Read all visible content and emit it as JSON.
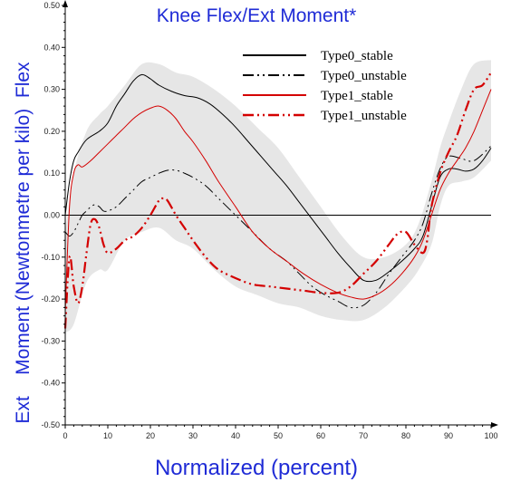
{
  "chart_data": {
    "type": "line",
    "title": "Knee Flex/Ext Moment*",
    "xlabel": "Normalized (percent)",
    "ylabel": "Ext    Moment (Newtonmetre per kilo)  Flex",
    "xlim": [
      0,
      100
    ],
    "ylim": [
      -0.5,
      0.5
    ],
    "x_ticks": [
      "0",
      "10",
      "20",
      "30",
      "40",
      "50",
      "60",
      "70",
      "80",
      "90",
      "100"
    ],
    "y_ticks": [
      "0.50",
      "0.40",
      "0.30",
      "0.20",
      "0.10",
      "0.00",
      "-0.10",
      "-0.20",
      "-0.30",
      "-0.40",
      "-0.50"
    ],
    "legend_position": "top-right",
    "grid": false,
    "zero_line": true,
    "band": {
      "color": "#e6e6e6",
      "x": [
        0,
        2,
        5,
        8,
        10,
        14,
        18,
        22,
        26,
        30,
        35,
        40,
        45,
        50,
        55,
        60,
        65,
        70,
        75,
        80,
        83,
        86,
        88,
        90,
        93,
        96,
        100
      ],
      "upper": [
        -0.04,
        0.1,
        0.2,
        0.24,
        0.26,
        0.31,
        0.36,
        0.36,
        0.34,
        0.33,
        0.3,
        0.26,
        0.21,
        0.16,
        0.09,
        0.02,
        -0.05,
        -0.1,
        -0.1,
        -0.07,
        -0.02,
        0.08,
        0.16,
        0.22,
        0.3,
        0.36,
        0.37
      ],
      "lower": [
        -0.28,
        -0.26,
        -0.16,
        -0.13,
        -0.13,
        -0.06,
        -0.04,
        -0.03,
        -0.06,
        -0.08,
        -0.13,
        -0.17,
        -0.19,
        -0.21,
        -0.22,
        -0.24,
        -0.25,
        -0.25,
        -0.22,
        -0.17,
        -0.13,
        -0.07,
        0.02,
        0.07,
        0.08,
        0.09,
        0.13
      ]
    },
    "series": [
      {
        "name": "Type0_stable",
        "color": "#000000",
        "dash": "solid",
        "width": 1,
        "x": [
          0,
          1,
          2,
          3,
          5,
          8,
          10,
          12,
          14,
          16,
          18,
          20,
          22,
          25,
          28,
          31,
          34,
          37,
          40,
          43,
          46,
          49,
          52,
          55,
          58,
          61,
          64,
          67,
          70,
          73,
          76,
          79,
          82,
          84,
          86,
          88,
          90,
          92,
          94,
          96,
          98,
          100
        ],
        "y": [
          0.0,
          0.08,
          0.13,
          0.15,
          0.18,
          0.2,
          0.22,
          0.26,
          0.29,
          0.32,
          0.335,
          0.325,
          0.31,
          0.295,
          0.285,
          0.28,
          0.265,
          0.24,
          0.21,
          0.175,
          0.14,
          0.105,
          0.07,
          0.03,
          -0.01,
          -0.05,
          -0.09,
          -0.125,
          -0.155,
          -0.155,
          -0.135,
          -0.11,
          -0.08,
          -0.05,
          0.02,
          0.09,
          0.11,
          0.11,
          0.105,
          0.11,
          0.13,
          0.16
        ]
      },
      {
        "name": "Type0_unstable",
        "color": "#000000",
        "dash": "12,4,2,4,2,4",
        "width": 1,
        "x": [
          0,
          1,
          2,
          3,
          4,
          5,
          6,
          7,
          8,
          9,
          10,
          12,
          14,
          16,
          18,
          20,
          22,
          24,
          26,
          28,
          30,
          33,
          36,
          40,
          44,
          48,
          52,
          55,
          58,
          61,
          64,
          67,
          70,
          73,
          76,
          79,
          82,
          84,
          86,
          88,
          90,
          93,
          96,
          100
        ],
        "y": [
          -0.04,
          -0.05,
          -0.04,
          -0.02,
          0.0,
          0.01,
          0.02,
          0.025,
          0.02,
          0.01,
          0.01,
          0.02,
          0.04,
          0.06,
          0.08,
          0.09,
          0.1,
          0.107,
          0.107,
          0.1,
          0.09,
          0.07,
          0.04,
          0.0,
          -0.04,
          -0.08,
          -0.11,
          -0.14,
          -0.17,
          -0.19,
          -0.205,
          -0.22,
          -0.215,
          -0.185,
          -0.14,
          -0.1,
          -0.06,
          -0.02,
          0.05,
          0.11,
          0.14,
          0.135,
          0.13,
          0.165
        ]
      },
      {
        "name": "Type1_stable",
        "color": "#d40000",
        "dash": "solid",
        "width": 1,
        "x": [
          0,
          1,
          2,
          3,
          4,
          6,
          8,
          10,
          12,
          14,
          16,
          18,
          20,
          22,
          24,
          26,
          28,
          30,
          33,
          36,
          40,
          44,
          48,
          52,
          56,
          60,
          64,
          67,
          70,
          73,
          76,
          79,
          82,
          84,
          86,
          88,
          90,
          92,
          94,
          96,
          98,
          100
        ],
        "y": [
          -0.23,
          0.02,
          0.1,
          0.12,
          0.115,
          0.13,
          0.15,
          0.17,
          0.19,
          0.21,
          0.23,
          0.245,
          0.255,
          0.26,
          0.25,
          0.23,
          0.2,
          0.175,
          0.13,
          0.08,
          0.02,
          -0.04,
          -0.08,
          -0.11,
          -0.14,
          -0.165,
          -0.185,
          -0.195,
          -0.2,
          -0.19,
          -0.17,
          -0.14,
          -0.1,
          -0.06,
          0.0,
          0.06,
          0.1,
          0.13,
          0.16,
          0.2,
          0.25,
          0.3
        ]
      },
      {
        "name": "Type1_unstable",
        "color": "#d40000",
        "dash": "12,4,2,4,2,4",
        "width": 2.2,
        "x": [
          0,
          1,
          2,
          3,
          4,
          5,
          6,
          7,
          8,
          9,
          10,
          12,
          14,
          16,
          18,
          20,
          22,
          23,
          24,
          26,
          28,
          30,
          33,
          36,
          40,
          44,
          48,
          52,
          56,
          60,
          64,
          67,
          70,
          73,
          76,
          78,
          80,
          82,
          84,
          85,
          86,
          88,
          90,
          92,
          94,
          96,
          98,
          100
        ],
        "y": [
          -0.27,
          -0.1,
          -0.17,
          -0.21,
          -0.17,
          -0.09,
          -0.02,
          -0.01,
          -0.03,
          -0.07,
          -0.09,
          -0.08,
          -0.06,
          -0.05,
          -0.03,
          0.0,
          0.035,
          0.04,
          0.035,
          0.0,
          -0.03,
          -0.06,
          -0.1,
          -0.13,
          -0.15,
          -0.165,
          -0.17,
          -0.175,
          -0.18,
          -0.185,
          -0.185,
          -0.17,
          -0.14,
          -0.11,
          -0.07,
          -0.045,
          -0.04,
          -0.07,
          -0.09,
          -0.06,
          0.02,
          0.1,
          0.15,
          0.19,
          0.25,
          0.3,
          0.31,
          0.34
        ]
      }
    ]
  }
}
